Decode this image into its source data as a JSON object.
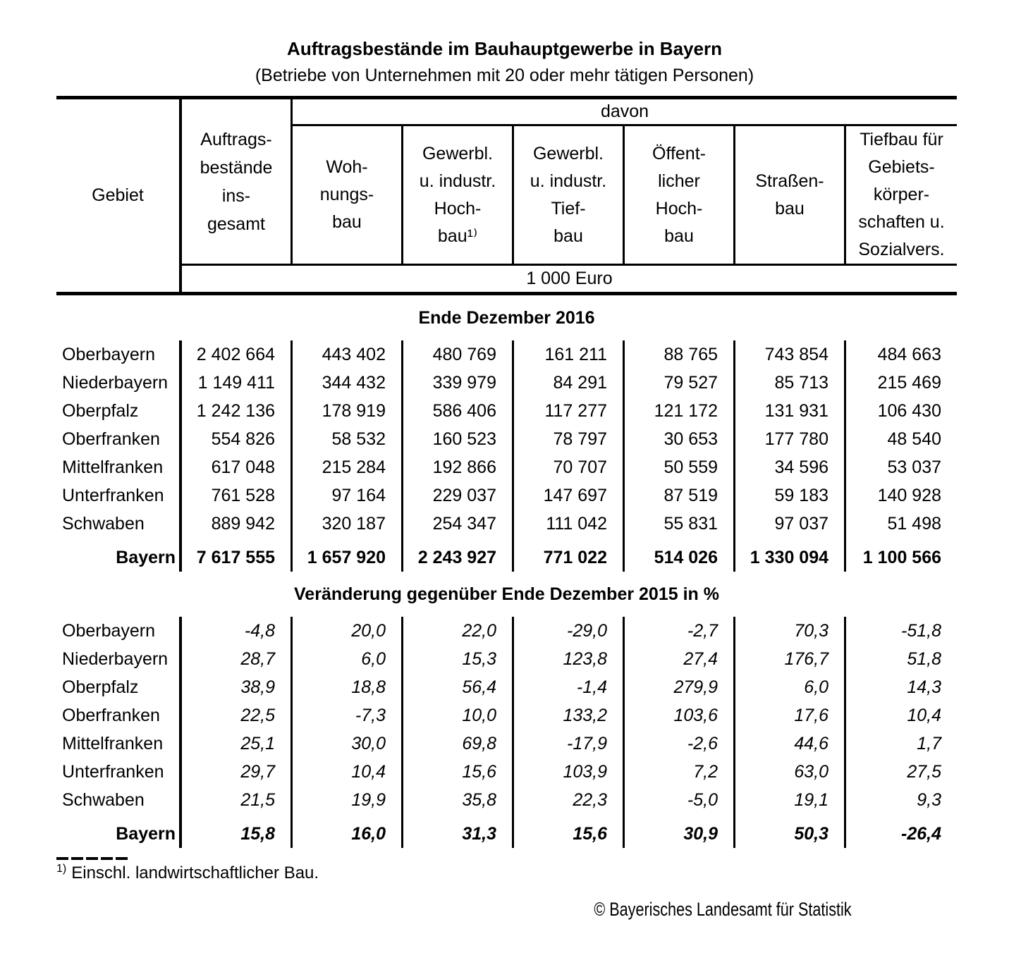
{
  "title": "Auftragsbestände im Bauhauptgewerbe in Bayern",
  "subtitle": "(Betriebe von Unternehmen mit 20 oder mehr tätigen Personen)",
  "table": {
    "gebiet_label": "Gebiet",
    "davon_label": "davon",
    "unit_label": "1 000 Euro",
    "columns": [
      "Auftrags-\nbestände\nins-\ngesamt",
      "Woh-\nnungs-\nbau",
      "Gewerbl.\nu. industr.\nHoch-\nbau¹⁾",
      "Gewerbl.\nu. industr.\nTief-\nbau",
      "Öffent-\nlicher\nHoch-\nbau",
      "Straßen-\nbau",
      "Tiefbau für\nGebiets-\nkörper-\nschaften u.\nSozialvers."
    ]
  },
  "sections": [
    {
      "title": "Ende Dezember 2016",
      "italic": false,
      "rows": [
        {
          "gebiet": "Oberbayern",
          "values": [
            "2 402 664",
            "443 402",
            "480 769",
            "161 211",
            "88 765",
            "743 854",
            "484 663"
          ]
        },
        {
          "gebiet": "Niederbayern",
          "values": [
            "1 149 411",
            "344 432",
            "339 979",
            "84 291",
            "79 527",
            "85 713",
            "215 469"
          ]
        },
        {
          "gebiet": "Oberpfalz",
          "values": [
            "1 242 136",
            "178 919",
            "586 406",
            "117 277",
            "121 172",
            "131 931",
            "106 430"
          ]
        },
        {
          "gebiet": "Oberfranken",
          "values": [
            "554 826",
            "58 532",
            "160 523",
            "78 797",
            "30 653",
            "177 780",
            "48 540"
          ]
        },
        {
          "gebiet": "Mittelfranken",
          "values": [
            "617 048",
            "215 284",
            "192 866",
            "70 707",
            "50 559",
            "34 596",
            "53 037"
          ]
        },
        {
          "gebiet": "Unterfranken",
          "values": [
            "761 528",
            "97 164",
            "229 037",
            "147 697",
            "87 519",
            "59 183",
            "140 928"
          ]
        },
        {
          "gebiet": "Schwaben",
          "values": [
            "889 942",
            "320 187",
            "254 347",
            "111 042",
            "55 831",
            "97 037",
            "51 498"
          ]
        },
        {
          "gebiet": "Bayern",
          "values": [
            "7 617 555",
            "1 657 920",
            "2 243 927",
            "771 022",
            "514 026",
            "1 330 094",
            "1 100 566"
          ],
          "is_total": true
        }
      ]
    },
    {
      "title": "Veränderung gegenüber Ende Dezember 2015 in %",
      "italic": true,
      "rows": [
        {
          "gebiet": "Oberbayern",
          "values": [
            "-4,8",
            "20,0",
            "22,0",
            "-29,0",
            "-2,7",
            "70,3",
            "-51,8"
          ]
        },
        {
          "gebiet": "Niederbayern",
          "values": [
            "28,7",
            "6,0",
            "15,3",
            "123,8",
            "27,4",
            "176,7",
            "51,8"
          ]
        },
        {
          "gebiet": "Oberpfalz",
          "values": [
            "38,9",
            "18,8",
            "56,4",
            "-1,4",
            "279,9",
            "6,0",
            "14,3"
          ]
        },
        {
          "gebiet": "Oberfranken",
          "values": [
            "22,5",
            "-7,3",
            "10,0",
            "133,2",
            "103,6",
            "17,6",
            "10,4"
          ]
        },
        {
          "gebiet": "Mittelfranken",
          "values": [
            "25,1",
            "30,0",
            "69,8",
            "-17,9",
            "-2,6",
            "44,6",
            "1,7"
          ]
        },
        {
          "gebiet": "Unterfranken",
          "values": [
            "29,7",
            "10,4",
            "15,6",
            "103,9",
            "7,2",
            "63,0",
            "27,5"
          ]
        },
        {
          "gebiet": "Schwaben",
          "values": [
            "21,5",
            "19,9",
            "35,8",
            "22,3",
            "-5,0",
            "19,1",
            "9,3"
          ]
        },
        {
          "gebiet": "Bayern",
          "values": [
            "15,8",
            "16,0",
            "31,3",
            "15,6",
            "30,9",
            "50,3",
            "-26,4"
          ],
          "is_total": true
        }
      ]
    }
  ],
  "footnote_marker": "1)",
  "footnote_text": "Einschl. landwirtschaftlicher Bau.",
  "copyright": "© Bayerisches Landesamt für Statistik",
  "colors": {
    "background": "#ffffff",
    "text": "#000000",
    "line": "#000000"
  }
}
